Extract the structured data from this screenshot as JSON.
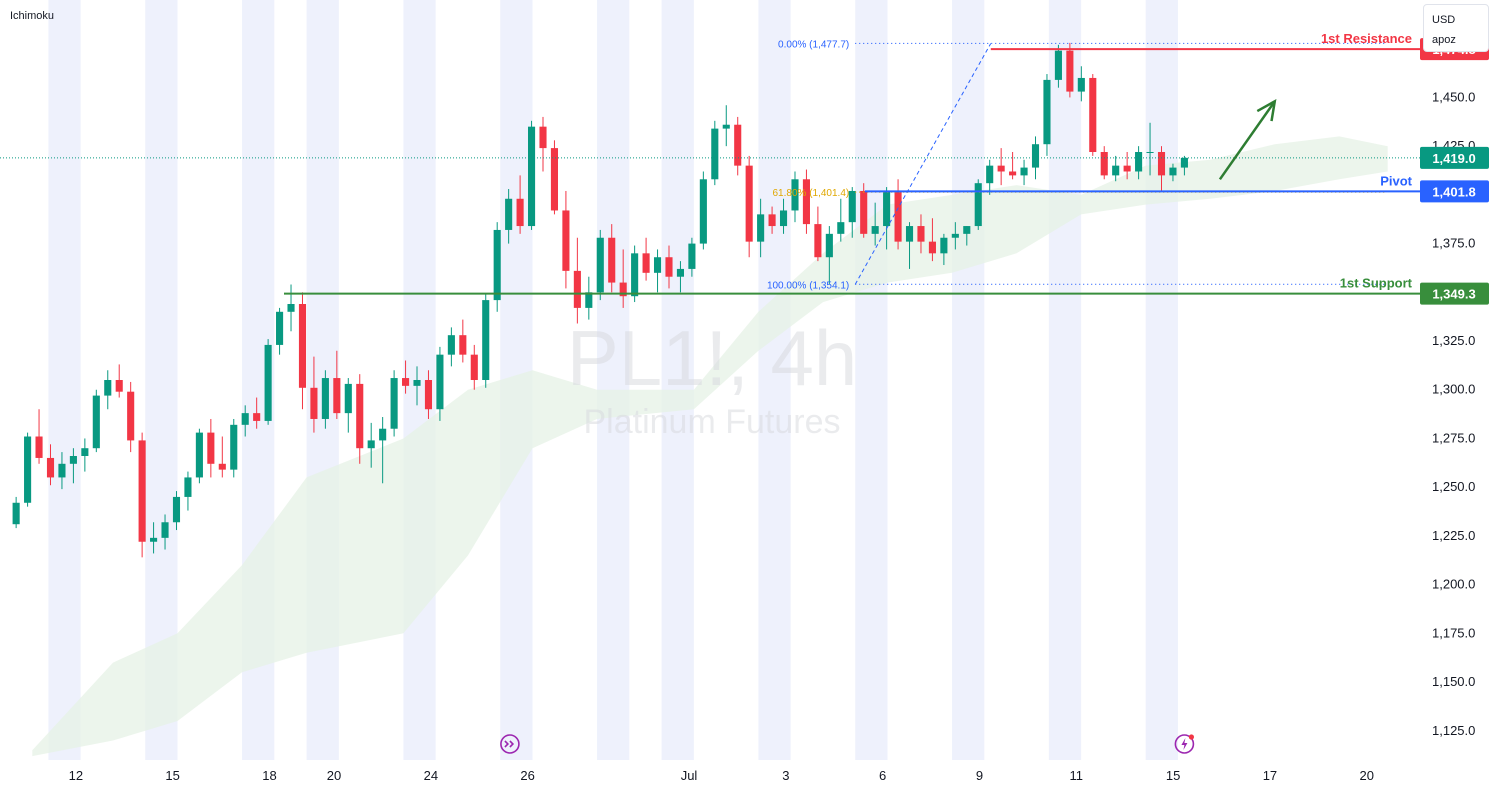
{
  "indicator_label": "Ichimoku",
  "currency": "USD",
  "account": "apoz",
  "watermark": {
    "symbol": "PL1!, 4h",
    "name": "Platinum Futures"
  },
  "colors": {
    "up": "#089981",
    "down": "#f23645",
    "resistance": "#f23645",
    "pivot": "#2962ff",
    "support": "#388e3c",
    "fib": "#2962ff",
    "fib_618": "#e0a800",
    "arrow": "#2e7d32",
    "cloud": "#e6f2e6",
    "session_band": "#eef1fc"
  },
  "chart_data": {
    "type": "candlestick",
    "title": "Platinum Futures",
    "symbol": "PL1!",
    "timeframe": "4h",
    "ylim": [
      1110,
      1500
    ],
    "y_ticks": [
      1125,
      1150,
      1175,
      1200,
      1225,
      1250,
      1275,
      1300,
      1325,
      1350,
      1375,
      1400,
      1425,
      1450
    ],
    "y_tick_labels": [
      "1,125.0",
      "1,150.0",
      "1,175.0",
      "1,200.0",
      "1,225.0",
      "1,250.0",
      "1,275.0",
      "1,300.0",
      "1,325.0",
      "1,350.0",
      "1,375.0",
      "1,400.0",
      "1,425.0",
      "1,450.0"
    ],
    "x_labels": [
      "12",
      "15",
      "18",
      "20",
      "24",
      "26",
      "Jul",
      "3",
      "6",
      "9",
      "11",
      "15",
      "17",
      "20"
    ],
    "x_label_positions": [
      1.85,
      4.85,
      7.85,
      9.85,
      12.85,
      15.85,
      20.85,
      23.85,
      26.85,
      29.85,
      32.85,
      35.85,
      38.85,
      41.85
    ],
    "x_range": [
      -0.5,
      43.5
    ],
    "last_bar_index": 36.2,
    "session_bands": [
      [
        1,
        2
      ],
      [
        4,
        5
      ],
      [
        7,
        8
      ],
      [
        9,
        10
      ],
      [
        12,
        13
      ],
      [
        15,
        16
      ],
      [
        18,
        19
      ],
      [
        20,
        21
      ],
      [
        23,
        24
      ],
      [
        26,
        27
      ],
      [
        29,
        30
      ],
      [
        32,
        33
      ],
      [
        35,
        36
      ]
    ],
    "cloud": {
      "top": [
        [
          0.5,
          1115
        ],
        [
          3,
          1160
        ],
        [
          5,
          1175
        ],
        [
          7,
          1210
        ],
        [
          9,
          1255
        ],
        [
          12,
          1275
        ],
        [
          14,
          1300
        ],
        [
          16,
          1310
        ],
        [
          18,
          1300
        ],
        [
          21,
          1300
        ],
        [
          23,
          1340
        ],
        [
          25,
          1370
        ],
        [
          27,
          1395
        ],
        [
          29,
          1400
        ],
        [
          31,
          1405
        ],
        [
          33,
          1400
        ],
        [
          35,
          1415
        ],
        [
          37,
          1418
        ],
        [
          39,
          1426
        ],
        [
          41,
          1430
        ],
        [
          42.5,
          1425
        ]
      ],
      "bottom": [
        [
          0.5,
          1112
        ],
        [
          3,
          1120
        ],
        [
          5,
          1130
        ],
        [
          7,
          1155
        ],
        [
          9,
          1165
        ],
        [
          12,
          1175
        ],
        [
          14,
          1215
        ],
        [
          16,
          1270
        ],
        [
          18,
          1285
        ],
        [
          21,
          1290
        ],
        [
          23,
          1320
        ],
        [
          25,
          1345
        ],
        [
          27,
          1355
        ],
        [
          29,
          1360
        ],
        [
          31,
          1370
        ],
        [
          33,
          1390
        ],
        [
          35,
          1395
        ],
        [
          37,
          1398
        ],
        [
          39,
          1402
        ],
        [
          41,
          1408
        ],
        [
          42.5,
          1412
        ]
      ]
    },
    "candles": [
      [
        1231,
        1245,
        1229,
        1242
      ],
      [
        1242,
        1278,
        1240,
        1276
      ],
      [
        1276,
        1290,
        1262,
        1265
      ],
      [
        1265,
        1272,
        1251,
        1255
      ],
      [
        1255,
        1268,
        1249,
        1262
      ],
      [
        1262,
        1270,
        1252,
        1266
      ],
      [
        1266,
        1275,
        1258,
        1270
      ],
      [
        1270,
        1300,
        1268,
        1297
      ],
      [
        1297,
        1310,
        1290,
        1305
      ],
      [
        1305,
        1313,
        1296,
        1299
      ],
      [
        1299,
        1304,
        1268,
        1274
      ],
      [
        1274,
        1278,
        1214,
        1222
      ],
      [
        1222,
        1232,
        1216,
        1224
      ],
      [
        1224,
        1236,
        1218,
        1232
      ],
      [
        1232,
        1248,
        1228,
        1245
      ],
      [
        1245,
        1258,
        1238,
        1255
      ],
      [
        1255,
        1280,
        1252,
        1278
      ],
      [
        1278,
        1285,
        1255,
        1262
      ],
      [
        1262,
        1276,
        1255,
        1259
      ],
      [
        1259,
        1285,
        1255,
        1282
      ],
      [
        1282,
        1292,
        1276,
        1288
      ],
      [
        1288,
        1296,
        1280,
        1284
      ],
      [
        1284,
        1326,
        1282,
        1323
      ],
      [
        1323,
        1342,
        1318,
        1340
      ],
      [
        1340,
        1354,
        1330,
        1344
      ],
      [
        1344,
        1350,
        1290,
        1301
      ],
      [
        1301,
        1317,
        1278,
        1285
      ],
      [
        1285,
        1310,
        1280,
        1306
      ],
      [
        1306,
        1320,
        1285,
        1288
      ],
      [
        1288,
        1306,
        1278,
        1303
      ],
      [
        1303,
        1308,
        1262,
        1270
      ],
      [
        1270,
        1283,
        1260,
        1274
      ],
      [
        1274,
        1286,
        1252,
        1280
      ],
      [
        1280,
        1310,
        1276,
        1306
      ],
      [
        1306,
        1315,
        1298,
        1302
      ],
      [
        1302,
        1312,
        1292,
        1305
      ],
      [
        1305,
        1310,
        1285,
        1290
      ],
      [
        1290,
        1322,
        1284,
        1318
      ],
      [
        1318,
        1332,
        1312,
        1328
      ],
      [
        1328,
        1336,
        1314,
        1318
      ],
      [
        1318,
        1323,
        1300,
        1305
      ],
      [
        1305,
        1349,
        1301,
        1346
      ],
      [
        1346,
        1386,
        1340,
        1382
      ],
      [
        1382,
        1403,
        1375,
        1398
      ],
      [
        1398,
        1410,
        1380,
        1384
      ],
      [
        1384,
        1438,
        1382,
        1435
      ],
      [
        1435,
        1440,
        1412,
        1424
      ],
      [
        1424,
        1428,
        1390,
        1392
      ],
      [
        1392,
        1402,
        1352,
        1361
      ],
      [
        1361,
        1378,
        1334,
        1342
      ],
      [
        1342,
        1358,
        1336,
        1350
      ],
      [
        1350,
        1382,
        1346,
        1378
      ],
      [
        1378,
        1385,
        1350,
        1355
      ],
      [
        1355,
        1372,
        1342,
        1348
      ],
      [
        1348,
        1374,
        1345,
        1370
      ],
      [
        1370,
        1378,
        1356,
        1360
      ],
      [
        1360,
        1372,
        1350,
        1368
      ],
      [
        1368,
        1374,
        1352,
        1358
      ],
      [
        1358,
        1366,
        1350,
        1362
      ],
      [
        1362,
        1378,
        1358,
        1375
      ],
      [
        1375,
        1412,
        1372,
        1408
      ],
      [
        1408,
        1438,
        1405,
        1434
      ],
      [
        1434,
        1446,
        1425,
        1436
      ],
      [
        1436,
        1440,
        1410,
        1415
      ],
      [
        1415,
        1420,
        1368,
        1376
      ],
      [
        1376,
        1398,
        1368,
        1390
      ],
      [
        1390,
        1394,
        1380,
        1384
      ],
      [
        1384,
        1398,
        1380,
        1392
      ],
      [
        1392,
        1412,
        1386,
        1408
      ],
      [
        1408,
        1413,
        1380,
        1385
      ],
      [
        1385,
        1394,
        1366,
        1368
      ],
      [
        1368,
        1384,
        1354,
        1380
      ],
      [
        1380,
        1398,
        1376,
        1386
      ],
      [
        1386,
        1404,
        1378,
        1402
      ],
      [
        1402,
        1406,
        1378,
        1380
      ],
      [
        1380,
        1396,
        1374,
        1384
      ],
      [
        1384,
        1404,
        1372,
        1402
      ],
      [
        1402,
        1408,
        1372,
        1376
      ],
      [
        1376,
        1386,
        1362,
        1384
      ],
      [
        1384,
        1390,
        1370,
        1376
      ],
      [
        1376,
        1388,
        1366,
        1370
      ],
      [
        1370,
        1380,
        1364,
        1378
      ],
      [
        1378,
        1386,
        1372,
        1380
      ],
      [
        1380,
        1384,
        1374,
        1384
      ],
      [
        1384,
        1408,
        1382,
        1406
      ],
      [
        1406,
        1418,
        1400,
        1415
      ],
      [
        1415,
        1424,
        1405,
        1412
      ],
      [
        1412,
        1422,
        1408,
        1410
      ],
      [
        1410,
        1418,
        1405,
        1414
      ],
      [
        1414,
        1430,
        1408,
        1426
      ],
      [
        1426,
        1462,
        1420,
        1459
      ],
      [
        1459,
        1477,
        1455,
        1474
      ],
      [
        1474,
        1478,
        1450,
        1453
      ],
      [
        1453,
        1466,
        1448,
        1460
      ],
      [
        1460,
        1462,
        1420,
        1422
      ],
      [
        1422,
        1425,
        1408,
        1410
      ],
      [
        1410,
        1420,
        1407,
        1415
      ],
      [
        1415,
        1422,
        1408,
        1412
      ],
      [
        1412,
        1425,
        1408,
        1422
      ],
      [
        1422,
        1437,
        1410,
        1422
      ],
      [
        1422,
        1425,
        1402,
        1410
      ],
      [
        1410,
        1416,
        1407,
        1414
      ],
      [
        1414,
        1420,
        1410,
        1419
      ]
    ],
    "levels": [
      {
        "name": "1st Resistance",
        "value": 1474.8,
        "label": "1,474.8",
        "color": "#f23645",
        "from": 30.2
      },
      {
        "name": "Pivot",
        "value": 1401.8,
        "label": "1,401.8",
        "color": "#2962ff",
        "from": 26.3
      },
      {
        "name": "1st Support",
        "value": 1349.3,
        "label": "1,349.3",
        "color": "#388e3c",
        "from": 8.3
      }
    ],
    "current_price": {
      "value": 1419.0,
      "label": "1,419.0"
    },
    "fibonacci": [
      {
        "label": "0.00% (1,477.7)",
        "value": 1477.7,
        "color": "#2962ff"
      },
      {
        "label": "61.80% (1,401.4)",
        "value": 1401.4,
        "color": "#e0a800"
      },
      {
        "label": "100.00% (1,354.1)",
        "value": 1354.1,
        "color": "#2962ff"
      }
    ],
    "fib_range": {
      "x_start": 26.0,
      "x_end": 42.4,
      "x_low": 26.0,
      "x_high": 30.2,
      "low": 1354.1,
      "high": 1477.7
    },
    "arrow": {
      "from": [
        37.3,
        1408
      ],
      "to": [
        39.0,
        1448
      ]
    },
    "bottom_icons": [
      {
        "name": "replay-icon",
        "x": 15.3
      },
      {
        "name": "flash-icon",
        "x": 36.2
      }
    ]
  }
}
